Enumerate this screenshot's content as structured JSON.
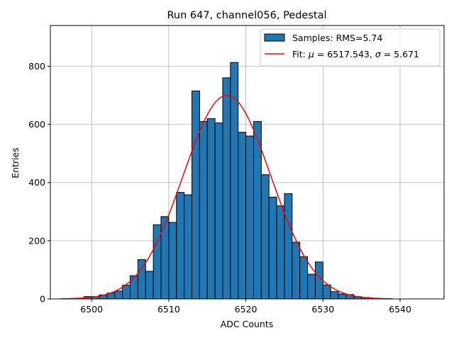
{
  "chart_data": {
    "type": "bar",
    "title": "Run 647, channel056, Pedestal",
    "xlabel": "ADC Counts",
    "ylabel": "Entries",
    "xlim": [
      6494.65,
      6545.7
    ],
    "ylim": [
      0,
      940
    ],
    "xticks": [
      6500,
      6510,
      6520,
      6530,
      6540
    ],
    "yticks": [
      0,
      200,
      400,
      600,
      800
    ],
    "grid": true,
    "legend_position": "top-right",
    "bar_color": "#1f77b4",
    "fit_color": "#ff0000",
    "bin_width": 1,
    "series": [
      {
        "name": "Samples: RMS=5.74",
        "x": [
          6499,
          6500,
          6501,
          6502,
          6503,
          6504,
          6505,
          6506,
          6507,
          6508,
          6509,
          6510,
          6511,
          6512,
          6513,
          6514,
          6515,
          6516,
          6517,
          6518,
          6519,
          6520,
          6521,
          6522,
          6523,
          6524,
          6525,
          6526,
          6527,
          6528,
          6529,
          6530,
          6531,
          6532,
          6533,
          6534,
          6535,
          6536,
          6537
        ],
        "values": [
          8,
          8,
          14,
          20,
          27,
          47,
          80,
          135,
          95,
          255,
          283,
          263,
          366,
          358,
          715,
          610,
          620,
          605,
          760,
          813,
          573,
          560,
          610,
          427,
          350,
          320,
          362,
          195,
          145,
          85,
          127,
          48,
          25,
          17,
          15,
          8,
          5,
          2,
          1
        ]
      },
      {
        "name": "Fit: μ = 6517.543, σ = 5.671",
        "mu": 6517.543,
        "sigma": 5.671,
        "amplitude": 700,
        "x_range": [
          6496,
          6539
        ]
      }
    ]
  },
  "legend": {
    "hist_label_prefix": "Samples: RMS=5.74",
    "fit_label_prefix": "Fit: ",
    "fit_mu_sym": "μ",
    "fit_mu_val": " = 6517.543, ",
    "fit_sigma_sym": "σ",
    "fit_sigma_val": " = 5.671"
  }
}
